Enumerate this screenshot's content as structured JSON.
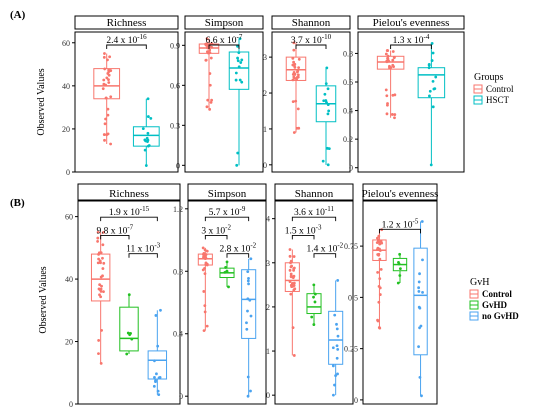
{
  "colors": {
    "control": "#f8766d",
    "hsct": "#00bfc4",
    "gvhd": "#22c021",
    "no_gvhd": "#4aa3f0",
    "facet_strip": "#d9d9d9"
  },
  "panels": [
    {
      "panel_label": "(A)",
      "ylabel": "Observed Values",
      "legend": {
        "title": "Groups",
        "items": [
          "Control",
          "HSCT"
        ]
      }
    },
    {
      "panel_label": "(B)",
      "ylabel": "Observed Values",
      "legend": {
        "title": "GvH",
        "items": [
          "Control",
          "GvHD",
          "no GvHD"
        ]
      }
    }
  ],
  "chart_data": [
    {
      "type": "box",
      "title": "Richness",
      "ylim": [
        0,
        65
      ],
      "yticks": [
        0,
        20,
        40,
        60
      ],
      "groups": [
        {
          "name": "Control",
          "min": 13,
          "q1": 34,
          "median": 40,
          "q3": 48,
          "max": 55
        },
        {
          "name": "HSCT",
          "min": 3,
          "q1": 12,
          "median": 17,
          "q3": 21,
          "max": 34
        }
      ],
      "annotations": [
        {
          "text": "2.4 x 10",
          "sup": "-16"
        }
      ]
    },
    {
      "type": "box",
      "title": "Simpson",
      "ylim": [
        -0.05,
        1.0
      ],
      "yticks": [
        0.0,
        0.3,
        0.6,
        0.9
      ],
      "groups": [
        {
          "name": "Control",
          "min": 0.42,
          "q1": 0.84,
          "median": 0.88,
          "q3": 0.91,
          "max": 0.95
        },
        {
          "name": "HSCT",
          "min": 0.0,
          "q1": 0.57,
          "median": 0.73,
          "q3": 0.85,
          "max": 0.95
        }
      ],
      "annotations": [
        {
          "text": "6.6 x 10",
          "sup": "-7"
        }
      ]
    },
    {
      "type": "box",
      "title": "Shannon",
      "ylim": [
        -0.2,
        3.7
      ],
      "yticks": [
        0,
        1,
        2,
        3
      ],
      "groups": [
        {
          "name": "Control",
          "min": 0.9,
          "q1": 2.35,
          "median": 2.65,
          "q3": 3.0,
          "max": 3.4
        },
        {
          "name": "HSCT",
          "min": 0.0,
          "q1": 1.2,
          "median": 1.7,
          "q3": 2.2,
          "max": 2.7
        }
      ],
      "annotations": [
        {
          "text": "3.7 x 10",
          "sup": "-10"
        }
      ]
    },
    {
      "type": "box",
      "title": "Pielou's evenness",
      "ylim": [
        -0.03,
        0.95
      ],
      "yticks": [
        0.0,
        0.2,
        0.4,
        0.6,
        0.8
      ],
      "groups": [
        {
          "name": "Control",
          "min": 0.35,
          "q1": 0.69,
          "median": 0.74,
          "q3": 0.78,
          "max": 0.82
        },
        {
          "name": "HSCT",
          "min": 0.02,
          "q1": 0.49,
          "median": 0.65,
          "q3": 0.7,
          "max": 0.87
        }
      ],
      "annotations": [
        {
          "text": "1.3 x 10",
          "sup": "-4"
        }
      ]
    },
    {
      "type": "box",
      "title": "Richness",
      "ylim": [
        0,
        65
      ],
      "yticks": [
        0,
        20,
        40,
        60
      ],
      "groups": [
        {
          "name": "Control",
          "min": 13,
          "q1": 33,
          "median": 40,
          "q3": 48,
          "max": 55
        },
        {
          "name": "GvHD",
          "min": 16,
          "q1": 17,
          "median": 21,
          "q3": 31,
          "max": 35
        },
        {
          "name": "no GvHD",
          "min": 3,
          "q1": 8,
          "median": 14,
          "q3": 17,
          "max": 30
        }
      ],
      "annotations": [
        {
          "text": "1.9 x 10",
          "sup": "-15"
        },
        {
          "text": "9.8 x 10",
          "sup": "-7"
        },
        {
          "text": "11 x 10",
          "sup": "-3"
        }
      ]
    },
    {
      "type": "box",
      "title": "Simpson",
      "ylim": [
        -0.05,
        1.25
      ],
      "yticks": [
        0.0,
        0.4,
        0.8,
        1.2
      ],
      "groups": [
        {
          "name": "Control",
          "min": 0.42,
          "q1": 0.84,
          "median": 0.88,
          "q3": 0.91,
          "max": 0.95
        },
        {
          "name": "GvHD",
          "min": 0.7,
          "q1": 0.76,
          "median": 0.79,
          "q3": 0.82,
          "max": 0.86
        },
        {
          "name": "no GvHD",
          "min": 0.0,
          "q1": 0.37,
          "median": 0.62,
          "q3": 0.81,
          "max": 0.88
        }
      ],
      "annotations": [
        {
          "text": "5.7 x 10",
          "sup": "-9"
        },
        {
          "text": "3 x 10",
          "sup": "-2"
        },
        {
          "text": "2.8 x 10",
          "sup": "-2"
        }
      ]
    },
    {
      "type": "box",
      "title": "Shannon",
      "ylim": [
        -0.2,
        4.4
      ],
      "yticks": [
        0,
        1,
        2,
        3,
        4
      ],
      "groups": [
        {
          "name": "Control",
          "min": 0.9,
          "q1": 2.35,
          "median": 2.6,
          "q3": 3.0,
          "max": 3.3
        },
        {
          "name": "GvHD",
          "min": 1.6,
          "q1": 1.85,
          "median": 2.0,
          "q3": 2.3,
          "max": 2.5
        },
        {
          "name": "no GvHD",
          "min": 0.0,
          "q1": 0.7,
          "median": 1.25,
          "q3": 1.9,
          "max": 2.6
        }
      ],
      "annotations": [
        {
          "text": "3.6 x 10",
          "sup": "-11"
        },
        {
          "text": "1.5 x 10",
          "sup": "-3"
        },
        {
          "text": "1.4 x 10",
          "sup": "-2"
        }
      ]
    },
    {
      "type": "box",
      "title": "Pielou's evenness",
      "ylim": [
        -0.02,
        0.97
      ],
      "yticks": [
        0.0,
        0.25,
        0.5,
        0.75
      ],
      "groups": [
        {
          "name": "Control",
          "min": 0.35,
          "q1": 0.68,
          "median": 0.73,
          "q3": 0.78,
          "max": 0.83
        },
        {
          "name": "GvHD",
          "min": 0.57,
          "q1": 0.63,
          "median": 0.66,
          "q3": 0.69,
          "max": 0.71
        },
        {
          "name": "no GvHD",
          "min": 0.02,
          "q1": 0.22,
          "median": 0.51,
          "q3": 0.74,
          "max": 0.87
        }
      ],
      "annotations": [
        {
          "text": "1.2 x 10",
          "sup": "-5"
        }
      ]
    }
  ]
}
